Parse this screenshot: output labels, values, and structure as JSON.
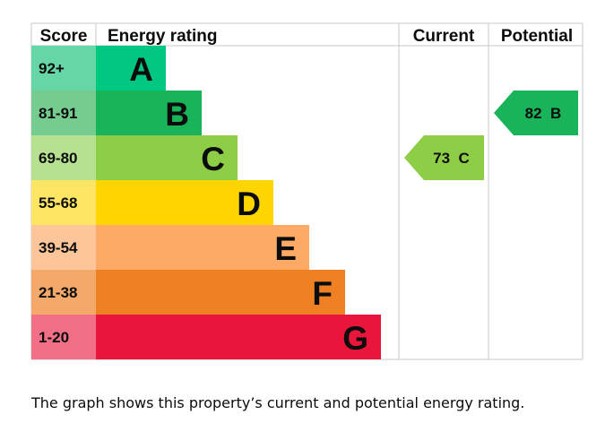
{
  "chart_data": {
    "type": "epc-rating",
    "columns": {
      "score": "Score",
      "rating": "Energy rating",
      "current": "Current",
      "potential": "Potential"
    },
    "bands": [
      {
        "letter": "A",
        "score_range": "92+",
        "color": "#00c781",
        "score_bg": "#67d6a7"
      },
      {
        "letter": "B",
        "score_range": "81-91",
        "color": "#19b459",
        "score_bg": "#75cc8e"
      },
      {
        "letter": "C",
        "score_range": "69-80",
        "color": "#8dce46",
        "score_bg": "#b6e190"
      },
      {
        "letter": "D",
        "score_range": "55-68",
        "color": "#ffd500",
        "score_bg": "#ffe564"
      },
      {
        "letter": "E",
        "score_range": "39-54",
        "color": "#fcaa65",
        "score_bg": "#fdc69a"
      },
      {
        "letter": "F",
        "score_range": "21-38",
        "color": "#ef8023",
        "score_bg": "#f4a86a"
      },
      {
        "letter": "G",
        "score_range": "1-20",
        "color": "#e9153b",
        "score_bg": "#f17087"
      }
    ],
    "current": {
      "score": 73,
      "band": "C",
      "label": "73 C",
      "color": "#8dce46"
    },
    "potential": {
      "score": 82,
      "band": "B",
      "label": "82 B",
      "color": "#19b459"
    }
  },
  "caption": "The graph shows this property’s current and potential energy rating."
}
